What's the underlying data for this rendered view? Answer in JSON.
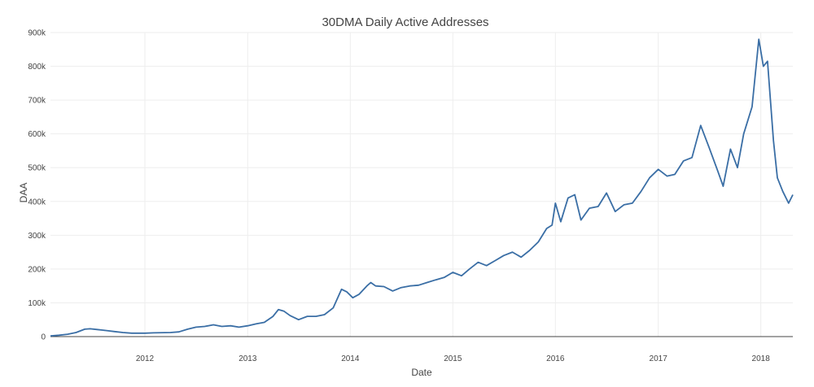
{
  "chart_data": {
    "type": "line",
    "title": "30DMA Daily Active Addresses",
    "xlabel": "Date",
    "ylabel": "DAA",
    "xlim": [
      "2011-01-30",
      "2018-04-25"
    ],
    "ylim": [
      0,
      900000
    ],
    "x_ticks": [
      "2012",
      "2013",
      "2014",
      "2015",
      "2016",
      "2017",
      "2018"
    ],
    "y_ticks": [
      {
        "value": 0,
        "label": "0"
      },
      {
        "value": 100000,
        "label": "100k"
      },
      {
        "value": 200000,
        "label": "200k"
      },
      {
        "value": 300000,
        "label": "300k"
      },
      {
        "value": 400000,
        "label": "400k"
      },
      {
        "value": 500000,
        "label": "500k"
      },
      {
        "value": 600000,
        "label": "600k"
      },
      {
        "value": 700000,
        "label": "700k"
      },
      {
        "value": 800000,
        "label": "800k"
      },
      {
        "value": 900000,
        "label": "900k"
      }
    ],
    "grid": true,
    "legend": "none",
    "series": [
      {
        "color": "#3a6ea5",
        "points": [
          [
            "2011-01-30",
            2000
          ],
          [
            "2011-03-01",
            4000
          ],
          [
            "2011-04-01",
            7000
          ],
          [
            "2011-05-01",
            12000
          ],
          [
            "2011-06-01",
            22000
          ],
          [
            "2011-06-20",
            23000
          ],
          [
            "2011-07-15",
            21000
          ],
          [
            "2011-08-15",
            18000
          ],
          [
            "2011-09-15",
            15000
          ],
          [
            "2011-10-15",
            12000
          ],
          [
            "2011-11-15",
            10000
          ],
          [
            "2012-01-01",
            10000
          ],
          [
            "2012-02-01",
            11000
          ],
          [
            "2012-04-01",
            12000
          ],
          [
            "2012-05-01",
            14000
          ],
          [
            "2012-06-01",
            22000
          ],
          [
            "2012-07-01",
            28000
          ],
          [
            "2012-08-01",
            30000
          ],
          [
            "2012-09-01",
            35000
          ],
          [
            "2012-10-01",
            30000
          ],
          [
            "2012-11-01",
            32000
          ],
          [
            "2012-12-01",
            28000
          ],
          [
            "2013-01-01",
            32000
          ],
          [
            "2013-02-01",
            38000
          ],
          [
            "2013-03-01",
            42000
          ],
          [
            "2013-04-01",
            60000
          ],
          [
            "2013-04-20",
            80000
          ],
          [
            "2013-05-10",
            75000
          ],
          [
            "2013-06-01",
            62000
          ],
          [
            "2013-07-01",
            50000
          ],
          [
            "2013-08-01",
            60000
          ],
          [
            "2013-09-01",
            60000
          ],
          [
            "2013-10-01",
            65000
          ],
          [
            "2013-11-01",
            85000
          ],
          [
            "2013-12-01",
            140000
          ],
          [
            "2013-12-20",
            132000
          ],
          [
            "2014-01-10",
            115000
          ],
          [
            "2014-02-01",
            125000
          ],
          [
            "2014-03-01",
            150000
          ],
          [
            "2014-03-15",
            160000
          ],
          [
            "2014-04-01",
            150000
          ],
          [
            "2014-05-01",
            148000
          ],
          [
            "2014-06-01",
            135000
          ],
          [
            "2014-07-01",
            145000
          ],
          [
            "2014-08-01",
            150000
          ],
          [
            "2014-09-01",
            152000
          ],
          [
            "2014-10-01",
            160000
          ],
          [
            "2014-11-01",
            168000
          ],
          [
            "2014-12-01",
            175000
          ],
          [
            "2015-01-01",
            190000
          ],
          [
            "2015-02-01",
            180000
          ],
          [
            "2015-03-01",
            200000
          ],
          [
            "2015-04-01",
            220000
          ],
          [
            "2015-05-01",
            210000
          ],
          [
            "2015-06-01",
            225000
          ],
          [
            "2015-07-01",
            240000
          ],
          [
            "2015-08-01",
            250000
          ],
          [
            "2015-09-01",
            235000
          ],
          [
            "2015-10-01",
            255000
          ],
          [
            "2015-11-01",
            280000
          ],
          [
            "2015-12-01",
            320000
          ],
          [
            "2015-12-20",
            330000
          ],
          [
            "2016-01-01",
            395000
          ],
          [
            "2016-01-20",
            340000
          ],
          [
            "2016-02-15",
            410000
          ],
          [
            "2016-03-10",
            420000
          ],
          [
            "2016-04-01",
            345000
          ],
          [
            "2016-05-01",
            380000
          ],
          [
            "2016-06-01",
            385000
          ],
          [
            "2016-07-01",
            425000
          ],
          [
            "2016-08-01",
            370000
          ],
          [
            "2016-09-01",
            390000
          ],
          [
            "2016-10-01",
            395000
          ],
          [
            "2016-11-01",
            430000
          ],
          [
            "2016-12-01",
            470000
          ],
          [
            "2017-01-01",
            495000
          ],
          [
            "2017-02-01",
            475000
          ],
          [
            "2017-03-01",
            480000
          ],
          [
            "2017-04-01",
            520000
          ],
          [
            "2017-05-01",
            530000
          ],
          [
            "2017-06-01",
            625000
          ],
          [
            "2017-07-01",
            560000
          ],
          [
            "2017-08-01",
            490000
          ],
          [
            "2017-08-20",
            445000
          ],
          [
            "2017-09-15",
            555000
          ],
          [
            "2017-10-10",
            500000
          ],
          [
            "2017-11-01",
            600000
          ],
          [
            "2017-12-01",
            680000
          ],
          [
            "2017-12-25",
            880000
          ],
          [
            "2018-01-10",
            800000
          ],
          [
            "2018-01-25",
            815000
          ],
          [
            "2018-02-15",
            580000
          ],
          [
            "2018-03-01",
            470000
          ],
          [
            "2018-03-20",
            430000
          ],
          [
            "2018-04-10",
            395000
          ],
          [
            "2018-04-25",
            420000
          ]
        ]
      }
    ]
  }
}
